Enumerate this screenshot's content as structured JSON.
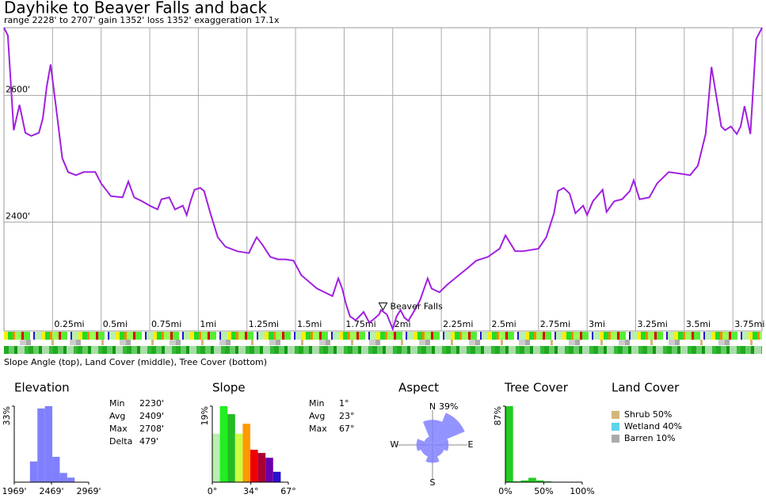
{
  "header": {
    "title": "Dayhike to Beaver Falls and back",
    "subtitle": "range 2228' to 2707'  gain 1352'  loss 1352'  exaggeration 17.1x"
  },
  "chart_data": [
    {
      "type": "line",
      "color": "#a020e0",
      "grid": true,
      "caption": "Slope Angle (top), Land Cover (middle), Tree Cover (bottom)",
      "x": [
        0,
        0.02,
        0.05,
        0.08,
        0.11,
        0.14,
        0.18,
        0.2,
        0.22,
        0.24,
        0.27,
        0.3,
        0.33,
        0.37,
        0.41,
        0.47,
        0.5,
        0.55,
        0.61,
        0.64,
        0.67,
        0.71,
        0.75,
        0.79,
        0.81,
        0.85,
        0.88,
        0.92,
        0.94,
        0.96,
        0.98,
        1.01,
        1.03,
        1.06,
        1.1,
        1.14,
        1.2,
        1.26,
        1.28,
        1.3,
        1.33,
        1.37,
        1.41,
        1.45,
        1.49,
        1.53,
        1.61,
        1.69,
        1.72,
        1.74,
        1.76,
        1.78,
        1.81,
        1.85,
        1.88,
        1.9,
        1.93,
        1.94,
        1.97,
        2,
        2.02,
        2.04,
        2.06,
        2.08,
        2.1,
        2.14,
        2.18,
        2.2,
        2.24,
        2.28,
        2.32,
        2.38,
        2.43,
        2.49,
        2.55,
        2.58,
        2.63,
        2.67,
        2.75,
        2.79,
        2.83,
        2.85,
        2.88,
        2.91,
        2.94,
        2.98,
        3,
        3.03,
        3.08,
        3.1,
        3.14,
        3.18,
        3.22,
        3.24,
        3.27,
        3.32,
        3.36,
        3.42,
        3.49,
        3.53,
        3.57,
        3.61,
        3.64,
        3.67,
        3.69,
        3.71,
        3.74,
        3.77,
        3.79,
        3.81,
        3.84,
        3.87,
        3.9
      ],
      "values": [
        2707,
        2695,
        2545,
        2585,
        2541,
        2536,
        2541,
        2564,
        2614,
        2649,
        2576,
        2501,
        2479,
        2474,
        2479,
        2479,
        2461,
        2441,
        2439,
        2464,
        2439,
        2433,
        2426,
        2420,
        2436,
        2439,
        2420,
        2426,
        2411,
        2433,
        2451,
        2454,
        2449,
        2416,
        2376,
        2361,
        2354,
        2351,
        2364,
        2376,
        2364,
        2345,
        2341,
        2341,
        2339,
        2316,
        2295,
        2283,
        2311,
        2295,
        2270,
        2251,
        2245,
        2258,
        2241,
        2246,
        2254,
        2261,
        2254,
        2231,
        2251,
        2261,
        2249,
        2244,
        2254,
        2276,
        2311,
        2295,
        2289,
        2301,
        2311,
        2326,
        2339,
        2345,
        2358,
        2379,
        2354,
        2354,
        2358,
        2376,
        2414,
        2449,
        2454,
        2445,
        2414,
        2426,
        2411,
        2433,
        2451,
        2416,
        2433,
        2436,
        2449,
        2466,
        2436,
        2439,
        2461,
        2479,
        2476,
        2474,
        2489,
        2539,
        2645,
        2589,
        2551,
        2545,
        2551,
        2539,
        2551,
        2583,
        2539,
        2689,
        2707
      ],
      "xlim": [
        0,
        3.9
      ],
      "ylim": [
        2228,
        2707
      ],
      "xticks": [
        {
          "value": 0.25,
          "label": "0.25mi"
        },
        {
          "value": 0.5,
          "label": "0.5mi"
        },
        {
          "value": 0.75,
          "label": "0.75mi"
        },
        {
          "value": 1,
          "label": "1mi"
        },
        {
          "value": 1.25,
          "label": "1.25mi"
        },
        {
          "value": 1.5,
          "label": "1.5mi"
        },
        {
          "value": 1.75,
          "label": "1.75mi"
        },
        {
          "value": 2,
          "label": "2mi"
        },
        {
          "value": 2.25,
          "label": "2.25mi"
        },
        {
          "value": 2.5,
          "label": "2.5mi"
        },
        {
          "value": 2.75,
          "label": "2.75mi"
        },
        {
          "value": 3,
          "label": "3mi"
        },
        {
          "value": 3.25,
          "label": "3.25mi"
        },
        {
          "value": 3.5,
          "label": "3.5mi"
        },
        {
          "value": 3.75,
          "label": "3.75mi"
        }
      ],
      "yticks": [
        {
          "value": 2400,
          "label": "2400'"
        },
        {
          "value": 2600,
          "label": "2600'"
        }
      ],
      "annotations": [
        {
          "text": "Beaver Falls",
          "x": 1.95,
          "y": 2266
        }
      ]
    },
    {
      "type": "histogram",
      "title": "Elevation",
      "color": "#8080ff",
      "bins": [
        2180,
        2280,
        2380,
        2480,
        2580,
        2680,
        2780
      ],
      "values": [
        9,
        32,
        33,
        11,
        4,
        2
      ],
      "xlim": [
        1969,
        2969
      ],
      "ylim": [
        0,
        33
      ],
      "xticks": [
        {
          "value": 1969,
          "label": "1969'"
        },
        {
          "value": 2469,
          "label": "2469'"
        },
        {
          "value": 2969,
          "label": "2969'"
        }
      ],
      "yticks": [
        {
          "value": 33,
          "label": "33%"
        }
      ],
      "stats": [
        [
          "Min",
          "2230'"
        ],
        [
          "Avg",
          "2409'"
        ],
        [
          "Max",
          "2708'"
        ],
        [
          "Delta",
          "479'"
        ]
      ]
    },
    {
      "type": "histogram",
      "title": "Slope",
      "colors": [
        "#b8f0b0",
        "#22ee22",
        "#22bb22",
        "#ccff44",
        "#ff9900",
        "#ee0000",
        "#aa0033",
        "#6a00aa",
        "#2a10cc"
      ],
      "bins": [
        0,
        6.7,
        13.4,
        20.1,
        26.8,
        33.5,
        40.2,
        46.9,
        53.6,
        60.3
      ],
      "values": [
        12.1,
        19,
        17,
        12.1,
        14.6,
        8.1,
        7.3,
        6.1,
        2.6
      ],
      "xlim": [
        0,
        67
      ],
      "ylim": [
        0,
        19
      ],
      "xticks": [
        {
          "value": 0,
          "label": "0°"
        },
        {
          "value": 34,
          "label": "34°"
        },
        {
          "value": 67,
          "label": "67°"
        }
      ],
      "yticks": [
        {
          "value": 19,
          "label": "19%"
        }
      ],
      "stats": [
        [
          "Min",
          "1°"
        ],
        [
          "Avg",
          "23°"
        ],
        [
          "Max",
          "67°"
        ]
      ]
    },
    {
      "type": "rose",
      "title": "Aspect",
      "color": "#8080ff",
      "directions": [
        "N",
        null,
        "E",
        null,
        "S",
        null,
        "W",
        null
      ],
      "values": [
        28,
        39,
        18,
        14,
        20,
        14,
        18,
        10
      ],
      "rlim": [
        0,
        39
      ],
      "rticks": [
        {
          "value": 39,
          "label": "39%"
        }
      ]
    },
    {
      "type": "histogram",
      "title": "Tree Cover",
      "color": "#22cc22",
      "bins": [
        0,
        10,
        20,
        30,
        40,
        50,
        60,
        70,
        80,
        90,
        100
      ],
      "values": [
        87,
        1,
        2,
        5,
        2,
        1,
        0,
        0,
        0,
        0
      ],
      "xlim": [
        0,
        100
      ],
      "ylim": [
        0,
        87
      ],
      "xticks": [
        {
          "value": 0,
          "label": "0%"
        },
        {
          "value": 50,
          "label": "50%"
        },
        {
          "value": 100,
          "label": "100%"
        }
      ],
      "yticks": [
        {
          "value": 87,
          "label": "87%"
        }
      ]
    },
    {
      "type": "legend",
      "title": "Land Cover",
      "items": [
        {
          "label": "Shrub 50%",
          "color": "#d2b77a"
        },
        {
          "label": "Wetland 40%",
          "color": "#5fd3e8"
        },
        {
          "label": "Barren 10%",
          "color": "#aaaaaa"
        }
      ]
    }
  ]
}
